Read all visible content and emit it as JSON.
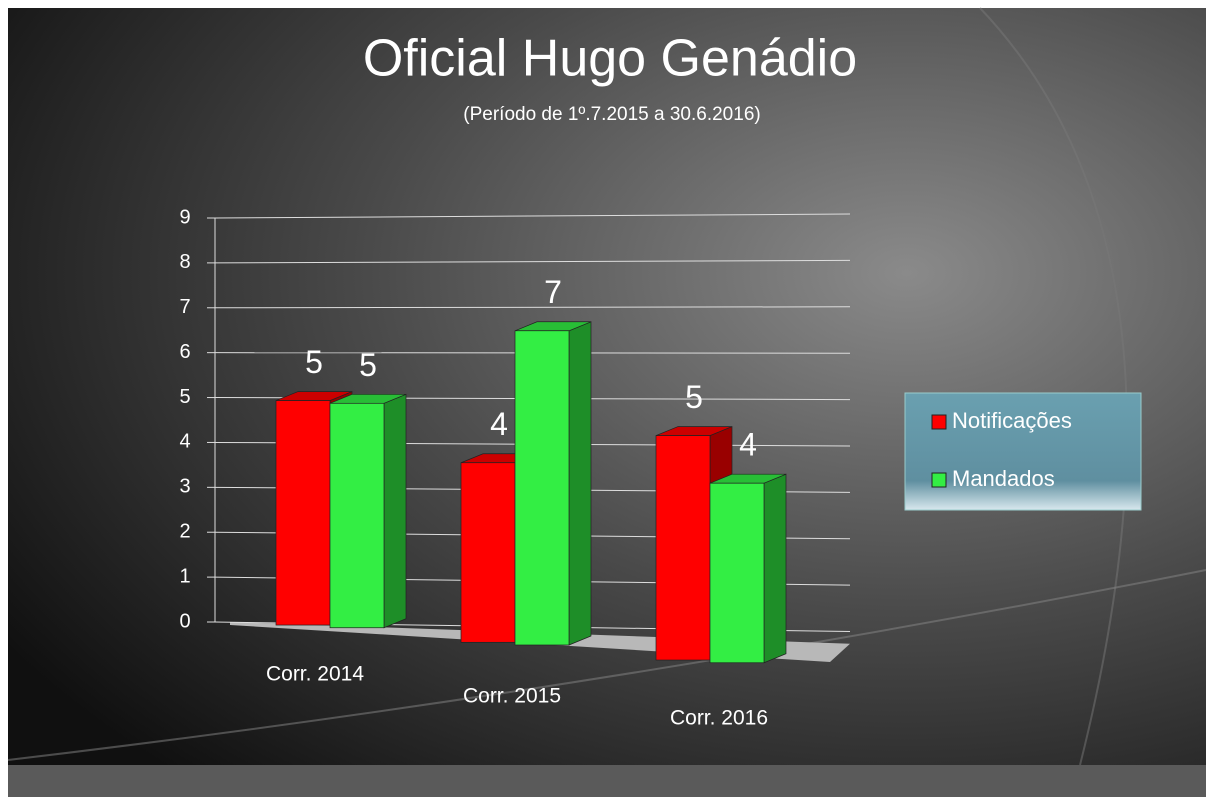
{
  "chart_data": {
    "type": "bar",
    "title": "Oficial Hugo Genádio",
    "subtitle": "(Período de 1º.7.2015  a  30.6.2016)",
    "categories": [
      "Corr. 2014",
      "Corr. 2015",
      "Corr. 2016"
    ],
    "series": [
      {
        "name": "Notificações",
        "color": "#ff0000",
        "values": [
          5,
          4,
          5
        ]
      },
      {
        "name": "Mandados",
        "color": "#33ee44",
        "values": [
          5,
          7,
          4
        ]
      }
    ],
    "ylim": [
      0,
      9
    ],
    "yticks": [
      0,
      1,
      2,
      3,
      4,
      5,
      6,
      7,
      8,
      9
    ],
    "grid": true,
    "legend": "right"
  }
}
